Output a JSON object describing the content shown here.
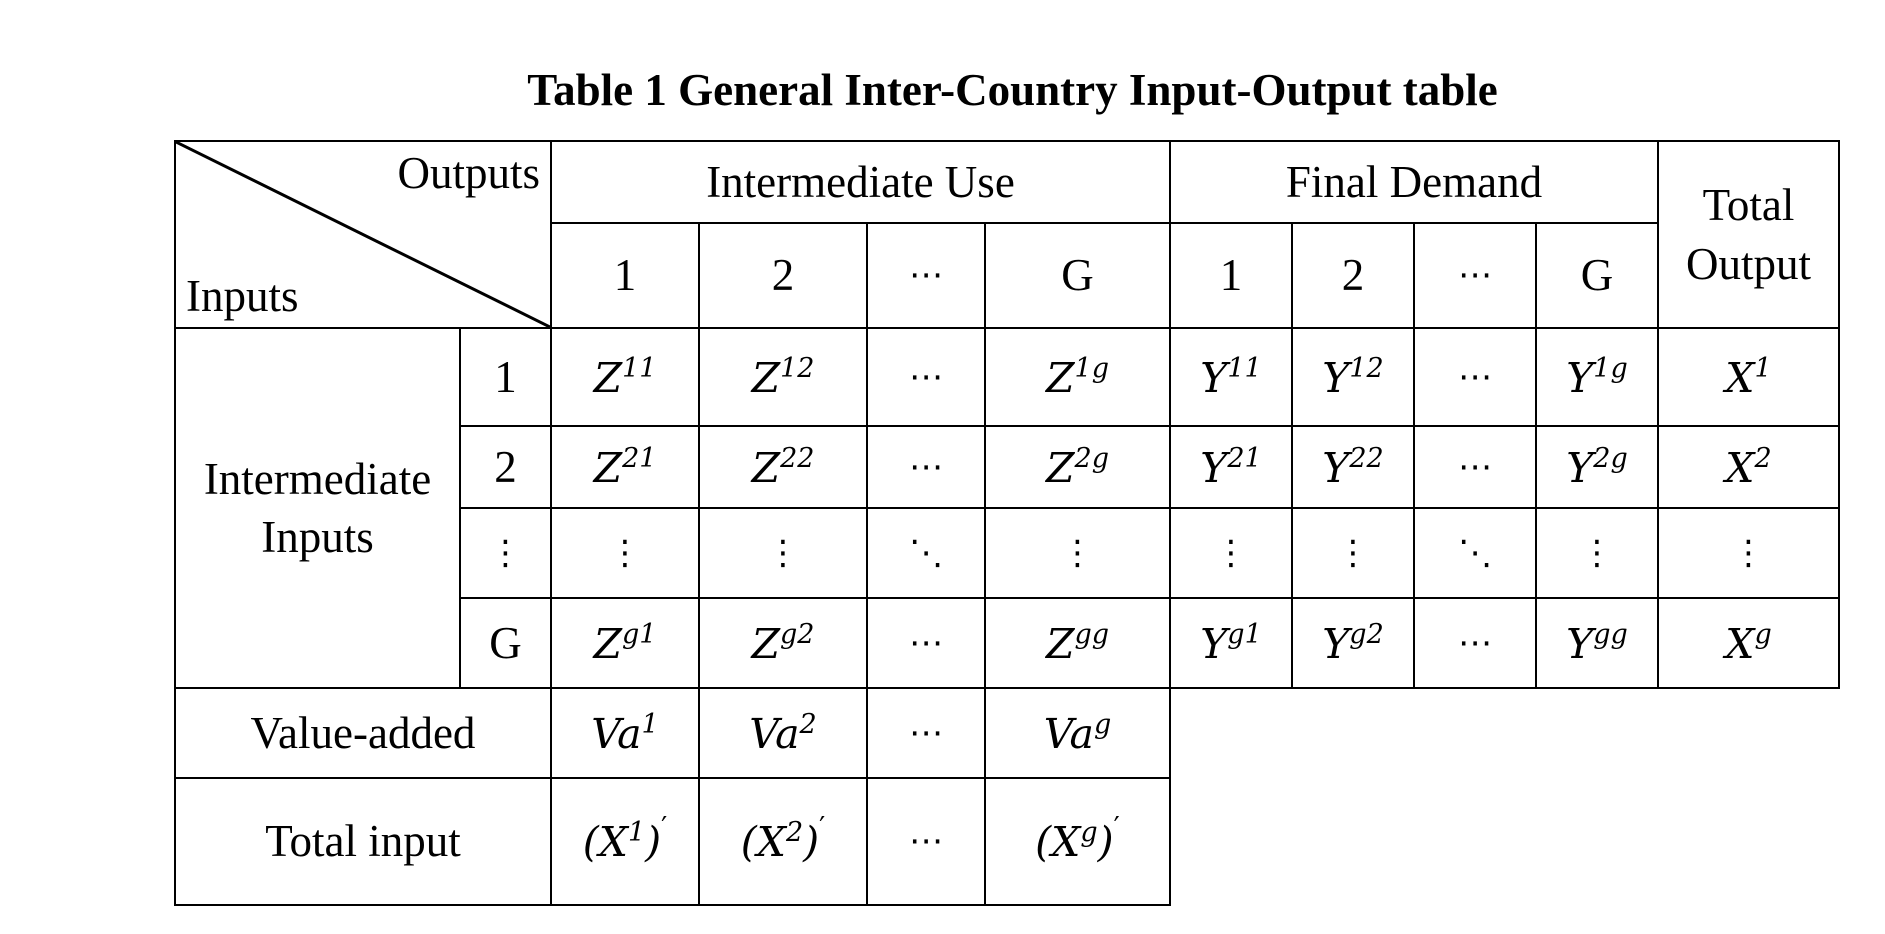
{
  "caption": "Table 1 General Inter-Country Input-Output table",
  "header": {
    "corner_outputs": "Outputs",
    "corner_inputs": "Inputs",
    "intermediate_use": "Intermediate Use",
    "final_demand": "Final Demand",
    "total_output": "Total Output",
    "col_1": "1",
    "col_2": "2",
    "col_dots": "⋯",
    "col_g": "G"
  },
  "rows": {
    "group_label": "Intermediate Inputs",
    "row_1": "1",
    "row_2": "2",
    "row_vdots": "⋮",
    "row_g": "G",
    "value_added": "Value-added",
    "total_input": "Total input"
  },
  "symbols": {
    "Z": "Z",
    "Y": "Y",
    "X": "X",
    "Va": "Va",
    "hdots": "⋯",
    "vdots": "⋮",
    "ddots": "⋱",
    "prime": "′"
  },
  "superscripts": {
    "r1": [
      "11",
      "12",
      "1g"
    ],
    "r2": [
      "21",
      "22",
      "2g"
    ],
    "rg": [
      "g1",
      "g2",
      "gg"
    ],
    "x": [
      "1",
      "2",
      "g"
    ]
  }
}
